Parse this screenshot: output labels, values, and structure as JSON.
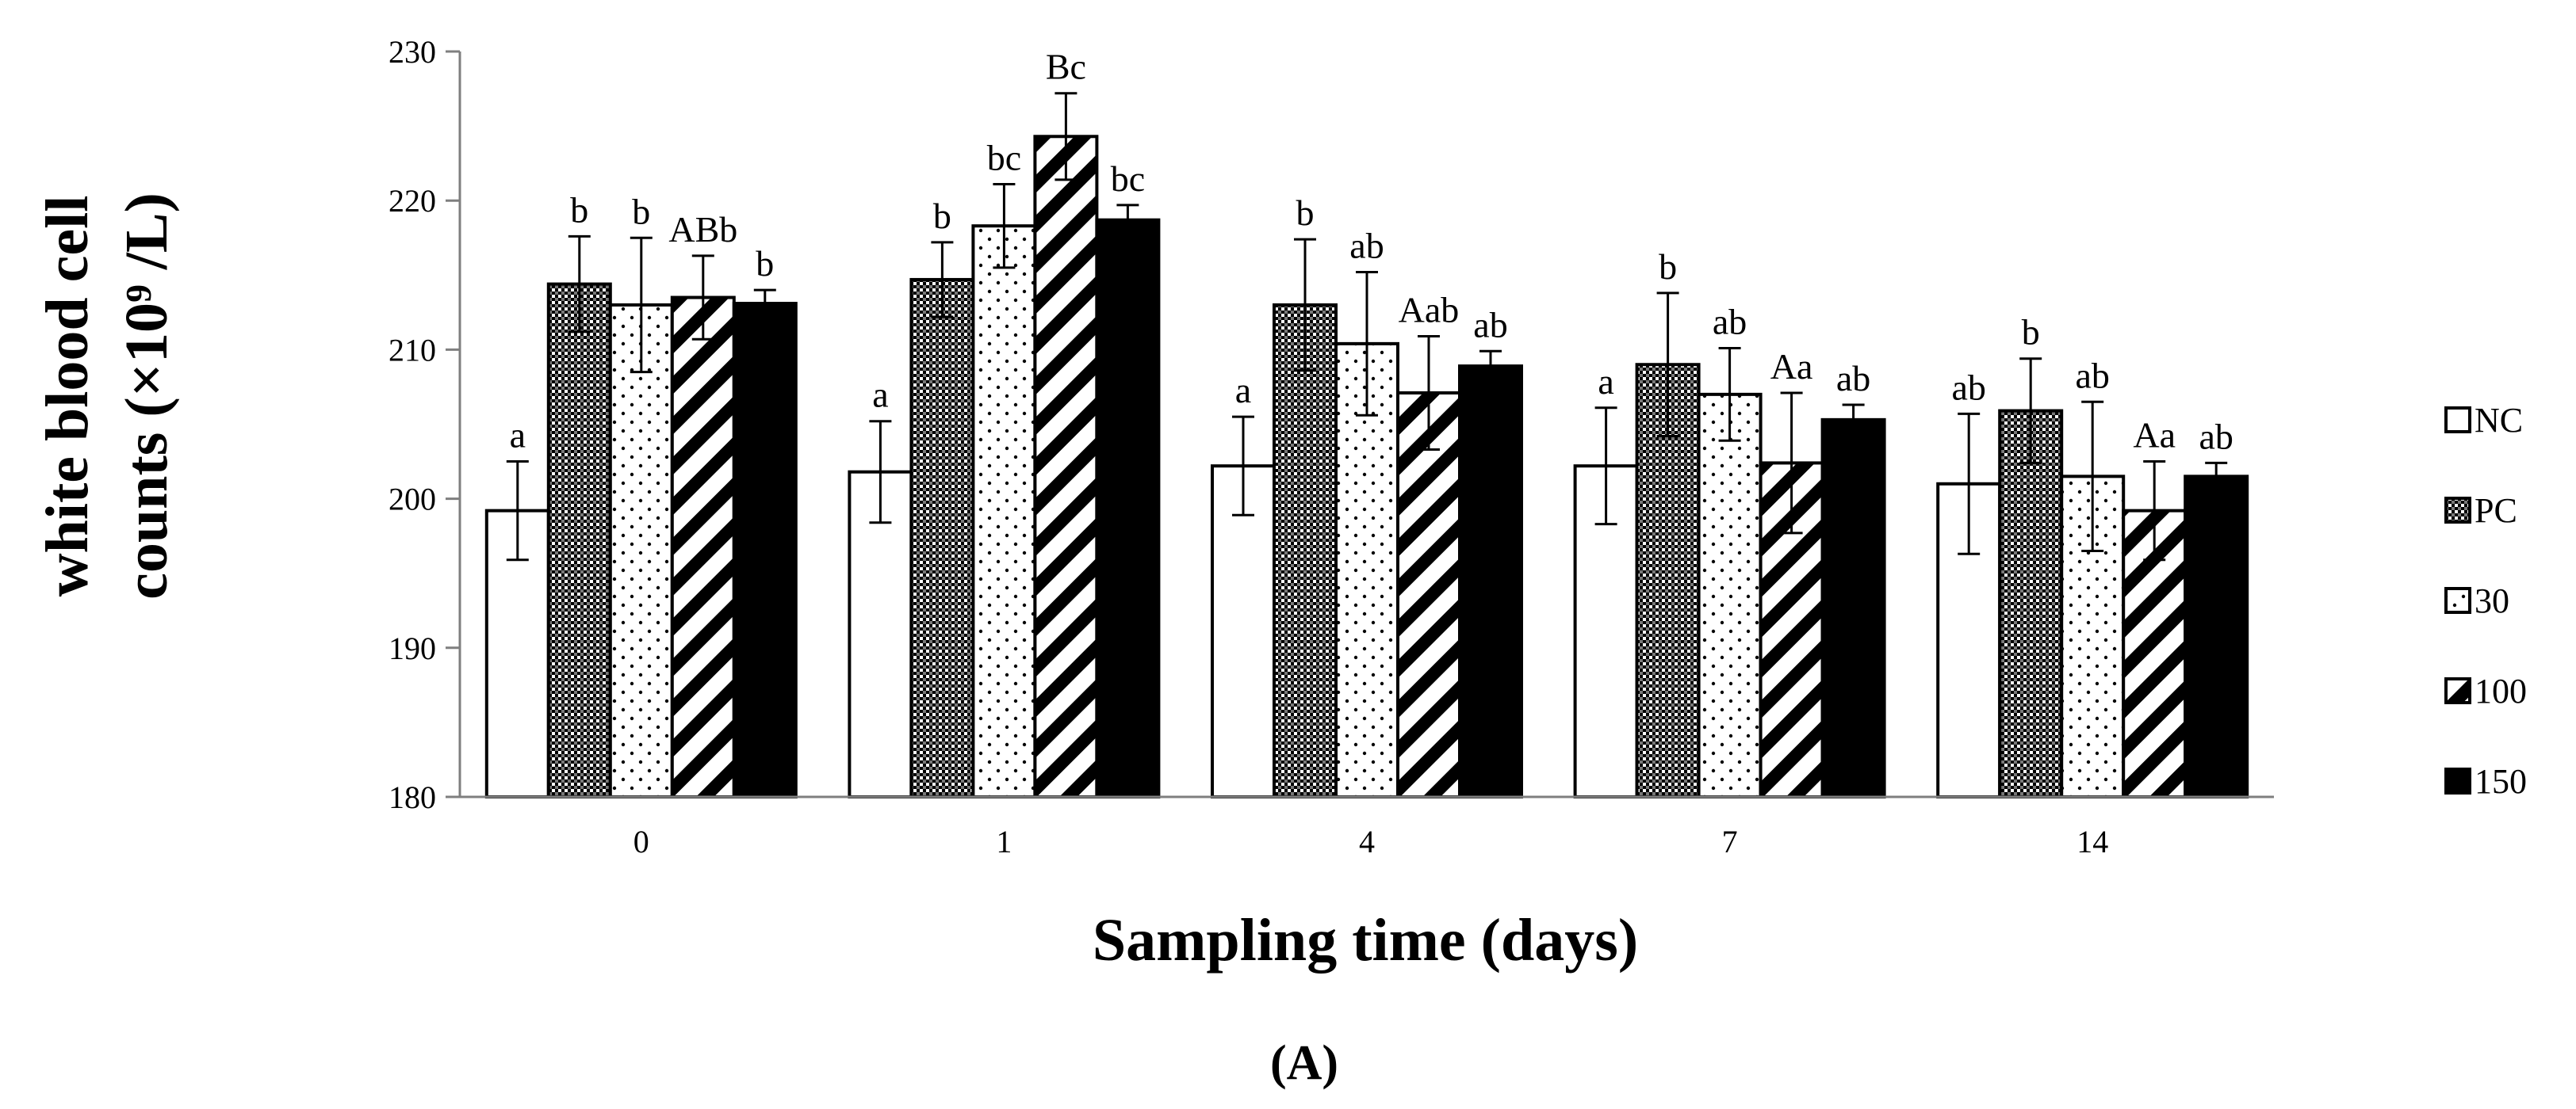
{
  "chart_data": {
    "type": "bar",
    "panel_label": "(A)",
    "xlabel": "Sampling time (days)",
    "ylabel_line1": "white blood cell",
    "ylabel_line2": "counts (×10⁹ /L)",
    "ylim": [
      180,
      230
    ],
    "ytick_step": 10,
    "categories": [
      "0",
      "1",
      "4",
      "7",
      "14"
    ],
    "series": [
      {
        "name": "NC",
        "pattern": "white",
        "values": [
          199.2,
          201.8,
          202.2,
          202.2,
          201.0
        ],
        "errors": [
          3.3,
          3.4,
          3.3,
          3.9,
          4.7
        ],
        "labels": [
          "a",
          "a",
          "a",
          "a",
          "ab"
        ]
      },
      {
        "name": "PC",
        "pattern": "grid",
        "values": [
          214.4,
          214.7,
          213.0,
          209.0,
          205.9
        ],
        "errors": [
          3.2,
          2.5,
          4.4,
          4.8,
          3.5
        ],
        "labels": [
          "b",
          "b",
          "b",
          "b",
          "b"
        ]
      },
      {
        "name": "30",
        "pattern": "dots",
        "values": [
          213.0,
          218.3,
          210.4,
          207.0,
          201.5
        ],
        "errors": [
          4.5,
          2.8,
          4.8,
          3.1,
          5.0
        ],
        "labels": [
          "b",
          "bc",
          "ab",
          "ab",
          "ab"
        ]
      },
      {
        "name": "100",
        "pattern": "stripes",
        "values": [
          213.5,
          224.3,
          207.1,
          202.4,
          199.2
        ],
        "errors": [
          2.8,
          2.9,
          3.8,
          4.7,
          3.3
        ],
        "labels": [
          "ABb",
          "Bc",
          "Aab",
          "Aa",
          "Aa"
        ]
      },
      {
        "name": "150",
        "pattern": "black",
        "values": [
          213.1,
          218.7,
          208.9,
          205.3,
          201.5
        ],
        "errors": [
          0.9,
          1.0,
          1.0,
          1.0,
          0.9
        ],
        "labels": [
          "b",
          "bc",
          "ab",
          "ab",
          "ab"
        ]
      }
    ],
    "legend_position": "right",
    "grid": false
  }
}
